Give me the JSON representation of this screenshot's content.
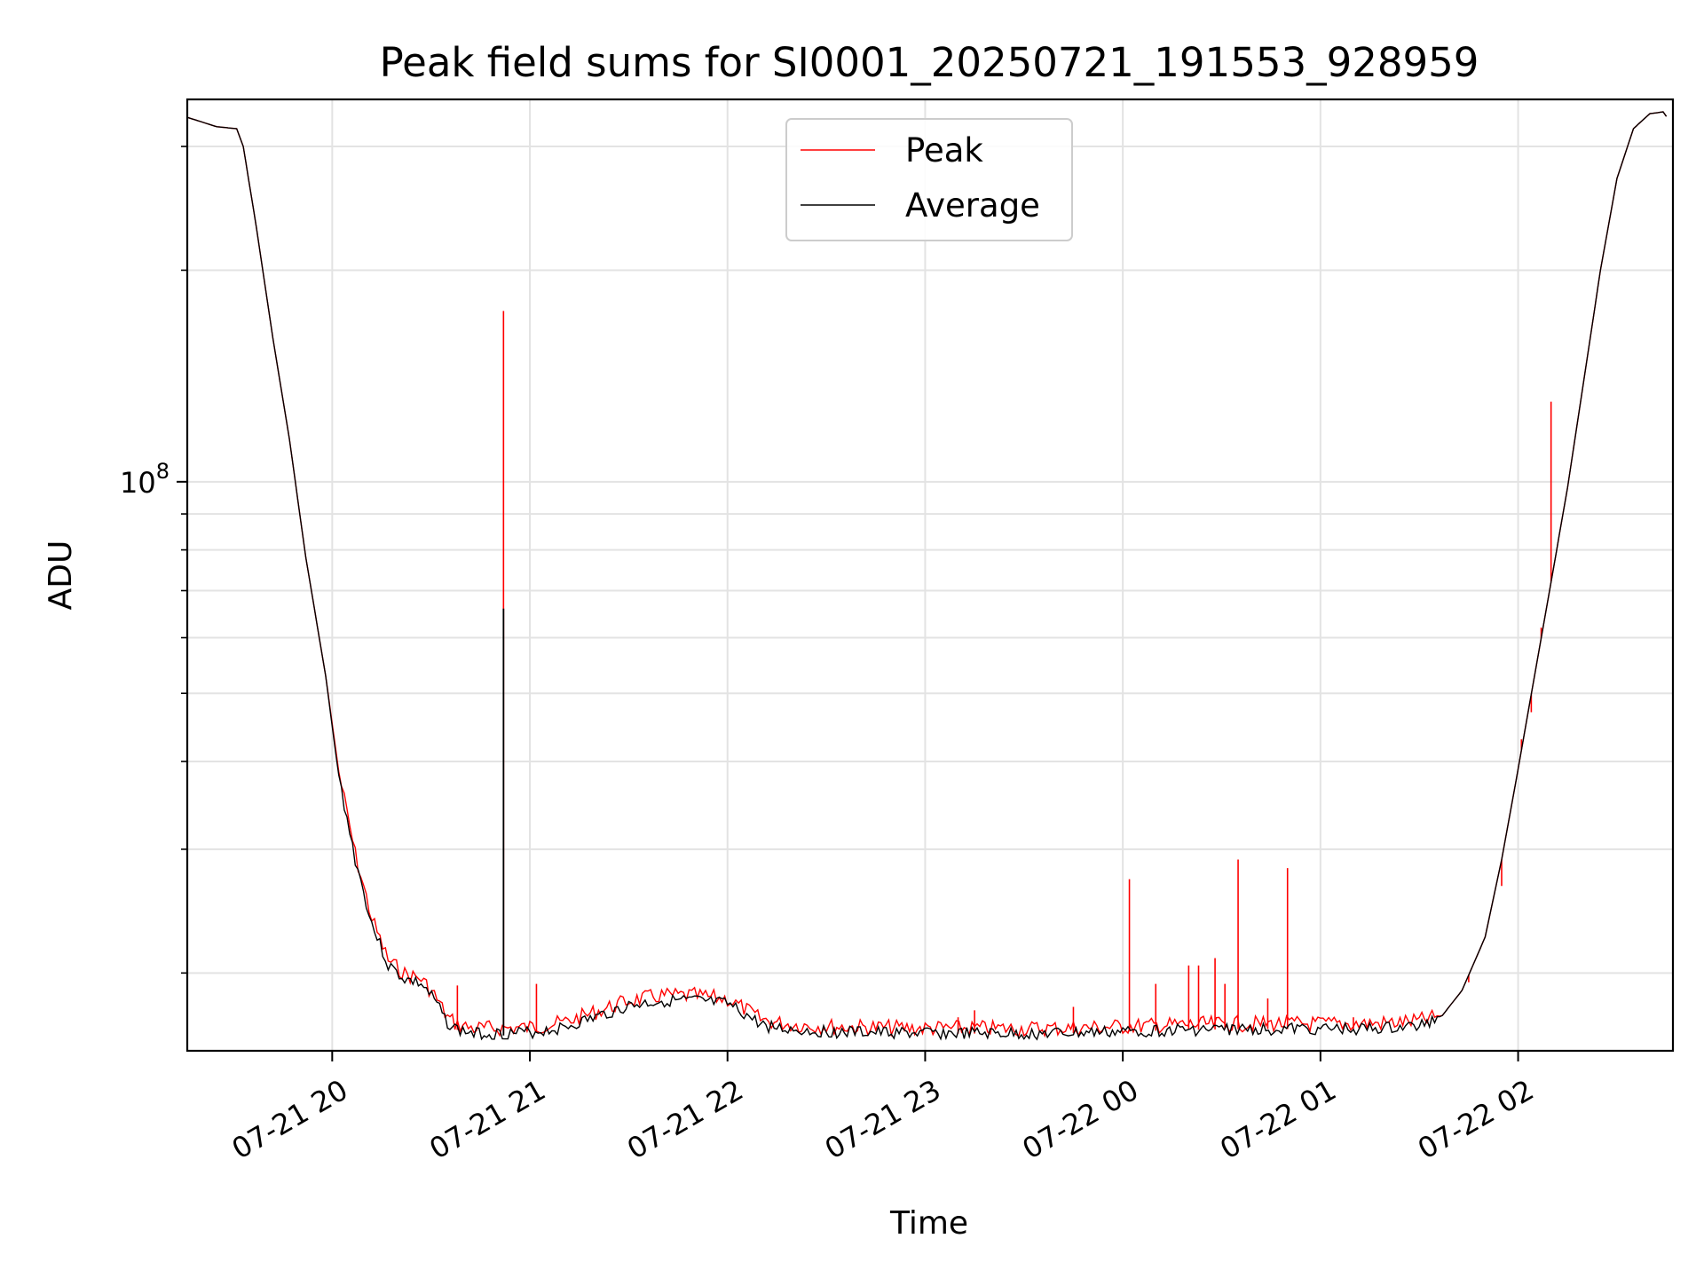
{
  "chart_data": {
    "type": "line",
    "title": "Peak field sums for SI0001_20250721_191553_928959",
    "xlabel": "Time",
    "ylabel": "ADU",
    "yscale": "log",
    "xlim": [
      "2025-07-21 19:16",
      "2025-07-22 02:47"
    ],
    "ylim": [
      15500000,
      350000000
    ],
    "grid": true,
    "legend_position": "top-center",
    "x_tick_labels": [
      "07-21 20",
      "07-21 21",
      "07-21 22",
      "07-21 23",
      "07-22 00",
      "07-22 01",
      "07-22 02"
    ],
    "x_tick_times": [
      "2025-07-21 20:00",
      "2025-07-21 21:00",
      "2025-07-21 22:00",
      "2025-07-21 23:00",
      "2025-07-22 00:00",
      "2025-07-22 01:00",
      "2025-07-22 02:00"
    ],
    "y_major_tick": {
      "value": 100000000,
      "base": "10",
      "exponent": "8"
    },
    "y_minor_ticks": [
      20000000,
      30000000,
      40000000,
      50000000,
      60000000,
      70000000,
      80000000,
      90000000,
      200000000,
      300000000
    ],
    "series": [
      {
        "name": "Average",
        "color": "#000000",
        "x": [
          "2025-07-21 19:16",
          "2025-07-21 19:25",
          "2025-07-21 19:31",
          "2025-07-21 19:33",
          "2025-07-21 19:37",
          "2025-07-21 19:42",
          "2025-07-21 19:47",
          "2025-07-21 19:52",
          "2025-07-21 19:58",
          "2025-07-21 20:02",
          "2025-07-21 20:07",
          "2025-07-21 20:12",
          "2025-07-21 20:17",
          "2025-07-21 20:22",
          "2025-07-21 20:27",
          "2025-07-21 20:31",
          "2025-07-21 20:35",
          "2025-07-21 20:38",
          "2025-07-21 20:43",
          "2025-07-21 20:50",
          "2025-07-21 21:00",
          "2025-07-21 21:10",
          "2025-07-21 21:20",
          "2025-07-21 21:30",
          "2025-07-21 21:40",
          "2025-07-21 21:50",
          "2025-07-21 22:00",
          "2025-07-21 22:05",
          "2025-07-21 22:10",
          "2025-07-21 22:15",
          "2025-07-21 22:20",
          "2025-07-21 22:30",
          "2025-07-21 22:45",
          "2025-07-21 23:00",
          "2025-07-21 23:15",
          "2025-07-21 23:30",
          "2025-07-21 23:45",
          "2025-07-22 00:00",
          "2025-07-22 00:15",
          "2025-07-22 00:30",
          "2025-07-22 00:45",
          "2025-07-22 01:00",
          "2025-07-22 01:10",
          "2025-07-22 01:20",
          "2025-07-22 01:30",
          "2025-07-22 01:37",
          "2025-07-22 01:43",
          "2025-07-22 01:50",
          "2025-07-22 01:55",
          "2025-07-22 02:00",
          "2025-07-22 02:05",
          "2025-07-22 02:10",
          "2025-07-22 02:15",
          "2025-07-22 02:20",
          "2025-07-22 02:25",
          "2025-07-22 02:30",
          "2025-07-22 02:35",
          "2025-07-22 02:40",
          "2025-07-22 02:44",
          "2025-07-22 02:45",
          "2025-07-22 02:46"
        ],
        "y": [
          330000000,
          320000000,
          318000000,
          300000000,
          230000000,
          160000000,
          115000000,
          78000000,
          53000000,
          38000000,
          29000000,
          23500000,
          20500000,
          19600000,
          19300000,
          18300000,
          17000000,
          16600000,
          16400000,
          16400000,
          16450000,
          16700000,
          17300000,
          17950000,
          18250000,
          18250000,
          18050000,
          17500000,
          16900000,
          16700000,
          16600000,
          16500000,
          16450000,
          16400000,
          16400000,
          16380000,
          16420000,
          16500000,
          16580000,
          16630000,
          16650000,
          16640000,
          16650000,
          16680000,
          16800000,
          17400000,
          18900000,
          22500000,
          29000000,
          39000000,
          53000000,
          72000000,
          98000000,
          140000000,
          200000000,
          270000000,
          318000000,
          334000000,
          336000000,
          331000000,
          336000000
        ]
      },
      {
        "name": "Peak",
        "color": "#ff0000",
        "note_spikes": "narrow peak spikes above average",
        "spikes": [
          {
            "x": "2025-07-21 20:52",
            "y": 175000000
          },
          {
            "x": "2025-07-21 21:02",
            "y": 19300000
          },
          {
            "x": "2025-07-21 20:38",
            "y": 19200000
          },
          {
            "x": "2025-07-21 23:10",
            "y": 17300000
          },
          {
            "x": "2025-07-21 23:15",
            "y": 17700000
          },
          {
            "x": "2025-07-21 23:45",
            "y": 17900000
          },
          {
            "x": "2025-07-22 00:02",
            "y": 27200000
          },
          {
            "x": "2025-07-22 00:10",
            "y": 19300000
          },
          {
            "x": "2025-07-22 00:20",
            "y": 20500000
          },
          {
            "x": "2025-07-22 00:23",
            "y": 20500000
          },
          {
            "x": "2025-07-22 00:28",
            "y": 21000000
          },
          {
            "x": "2025-07-22 00:31",
            "y": 19300000
          },
          {
            "x": "2025-07-22 00:35",
            "y": 29000000
          },
          {
            "x": "2025-07-22 00:44",
            "y": 18400000
          },
          {
            "x": "2025-07-22 00:50",
            "y": 28200000
          },
          {
            "x": "2025-07-22 01:10",
            "y": 17300000
          },
          {
            "x": "2025-07-22 01:45",
            "y": 19400000
          },
          {
            "x": "2025-07-22 01:55",
            "y": 26600000
          },
          {
            "x": "2025-07-22 02:01",
            "y": 43000000
          },
          {
            "x": "2025-07-22 02:04",
            "y": 47000000
          },
          {
            "x": "2025-07-22 02:07",
            "y": 62000000
          },
          {
            "x": "2025-07-22 02:10",
            "y": 130000000
          }
        ],
        "average_spike": {
          "x": "2025-07-21 20:52",
          "y": 66000000
        }
      }
    ]
  }
}
